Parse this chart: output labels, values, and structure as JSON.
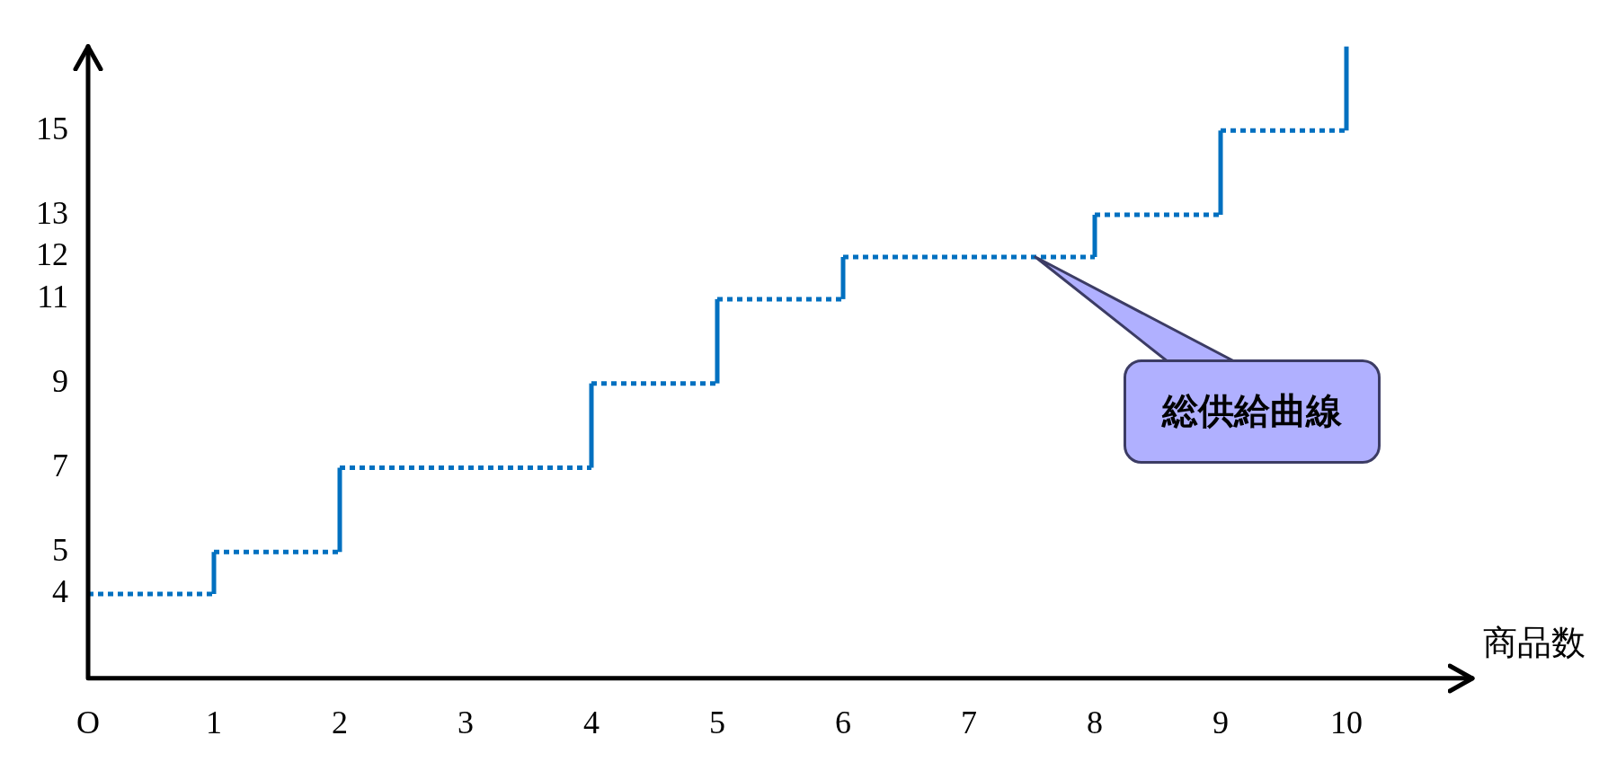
{
  "chart_data": {
    "type": "step",
    "xlabel": "商品数",
    "x": [
      0,
      1,
      2,
      4,
      5,
      6,
      8,
      9,
      10
    ],
    "series": [
      {
        "color": "#0070c0",
        "values": [
          4,
          5,
          7,
          9,
          11,
          12,
          13,
          15,
          17
        ],
        "line_style": "dotted"
      }
    ],
    "xlim": [
      0,
      11
    ],
    "xticks": [
      {
        "value": 0,
        "label": "O"
      },
      1,
      2,
      3,
      4,
      5,
      6,
      7,
      8,
      9,
      10
    ],
    "ylim": [
      2,
      17
    ],
    "yticks": [
      4,
      5,
      7,
      9,
      11,
      12,
      13,
      15
    ],
    "grid": false,
    "legend": false,
    "marker": "none",
    "annotations": [
      "総供給曲線"
    ]
  }
}
